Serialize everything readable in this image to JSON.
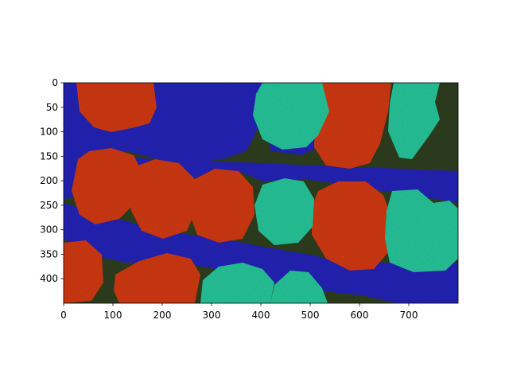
{
  "figure": {
    "image_description": "aerial image of tree canopy with segmentation mask overlay",
    "colors": {
      "ground": "#2e3f1e",
      "path_class": "#2323b8",
      "tree_red_class": "#d23a12",
      "tree_teal_class": "#27c79c"
    }
  },
  "axes": {
    "x_ticks": [
      "0",
      "100",
      "200",
      "300",
      "400",
      "500",
      "600",
      "700"
    ],
    "y_ticks": [
      "0",
      "50",
      "100",
      "150",
      "200",
      "250",
      "300",
      "350",
      "400"
    ],
    "x_values": [
      0,
      100,
      200,
      300,
      400,
      500,
      600,
      700
    ],
    "y_values": [
      0,
      50,
      100,
      150,
      200,
      250,
      300,
      350,
      400
    ],
    "xlim": [
      0,
      800
    ],
    "ylim": [
      450,
      0
    ]
  }
}
